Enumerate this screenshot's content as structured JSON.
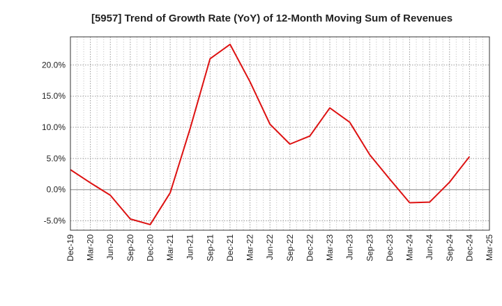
{
  "chart_data": {
    "type": "line",
    "title": "[5957]  Trend of Growth Rate (YoY) of 12-Month Moving Sum of Revenues",
    "xlabel": "",
    "ylabel": "",
    "x_ticks": [
      "Dec-19",
      "Mar-20",
      "Jun-20",
      "Sep-20",
      "Dec-20",
      "Mar-21",
      "Jun-21",
      "Sep-21",
      "Dec-21",
      "Mar-22",
      "Jun-22",
      "Sep-22",
      "Dec-22",
      "Mar-23",
      "Jun-23",
      "Sep-23",
      "Dec-23",
      "Mar-24",
      "Jun-24",
      "Sep-24",
      "Dec-24",
      "Mar-25"
    ],
    "y_ticks": [
      {
        "value": 20,
        "label": "20.0%"
      },
      {
        "value": 15,
        "label": "15.0%"
      },
      {
        "value": 10,
        "label": "10.0%"
      },
      {
        "value": 5,
        "label": "5.0%"
      },
      {
        "value": 0,
        "label": "0.0%"
      },
      {
        "value": -5,
        "label": "-5.0%"
      }
    ],
    "ylim": [
      -6.5,
      24.5
    ],
    "grid": true,
    "series": [
      {
        "name": "",
        "color": "#dd1111",
        "x": [
          "Dec-19",
          "Mar-20",
          "Jun-20",
          "Sep-20",
          "Dec-20",
          "Mar-21",
          "Jun-21",
          "Sep-21",
          "Dec-21",
          "Mar-22",
          "Jun-22",
          "Sep-22",
          "Dec-22",
          "Mar-23",
          "Jun-23",
          "Sep-23",
          "Dec-23",
          "Mar-24",
          "Jun-24",
          "Sep-24",
          "Dec-24"
        ],
        "values": [
          3.2,
          1.1,
          -0.9,
          -4.7,
          -5.6,
          -0.5,
          9.8,
          21.0,
          23.3,
          17.3,
          10.5,
          7.3,
          8.6,
          13.1,
          10.8,
          5.6,
          1.7,
          -2.1,
          -2.0,
          1.2,
          5.3
        ]
      }
    ]
  }
}
